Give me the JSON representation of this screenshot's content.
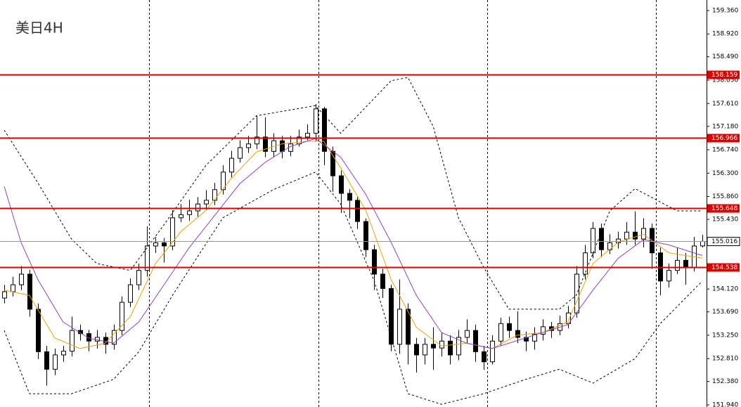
{
  "chart_data": {
    "type": "candlestick",
    "title": "美日4H",
    "ylim": [
      151.9,
      159.558
    ],
    "yticks": [
      {
        "value": 159.36,
        "label": "159.360"
      },
      {
        "value": 158.92,
        "label": "158.920"
      },
      {
        "value": 158.49,
        "label": "158.490"
      },
      {
        "value": 158.05,
        "label": "158.050"
      },
      {
        "value": 157.61,
        "label": "157.610"
      },
      {
        "value": 157.18,
        "label": "157.180"
      },
      {
        "value": 156.74,
        "label": "156.740"
      },
      {
        "value": 156.3,
        "label": "156.300"
      },
      {
        "value": 155.86,
        "label": "155.860"
      },
      {
        "value": 155.43,
        "label": "155.430"
      },
      {
        "value": 154.12,
        "label": "154.120"
      },
      {
        "value": 153.69,
        "label": "153.690"
      },
      {
        "value": 153.25,
        "label": "153.250"
      },
      {
        "value": 152.81,
        "label": "152.810"
      },
      {
        "value": 152.38,
        "label": "152.380"
      },
      {
        "value": 151.94,
        "label": "151.940"
      }
    ],
    "levels": [
      {
        "value": 158.159,
        "label": "158.159"
      },
      {
        "value": 156.966,
        "label": "156.966"
      },
      {
        "value": 155.648,
        "label": "155.648"
      },
      {
        "value": 154.538,
        "label": "154.538"
      }
    ],
    "level_color": "#e00000",
    "current_price": {
      "value": 155.016,
      "label": "155.016"
    },
    "open": [
      153.95,
      154.07,
      154.2,
      154.4,
      153.74,
      152.94,
      152.61,
      152.88,
      152.95,
      153.34,
      153.28,
      153.14,
      153.21,
      153.08,
      153.34,
      153.87,
      154.2,
      154.47,
      154.93,
      154.99,
      154.93,
      155.46,
      155.52,
      155.59,
      155.72,
      155.79,
      155.99,
      156.32,
      156.58,
      156.78,
      156.85,
      156.98,
      156.71,
      156.91,
      156.71,
      156.85,
      156.98,
      157.05,
      157.51,
      156.71,
      156.25,
      155.92,
      155.79,
      155.39,
      154.86,
      154.4,
      154.13,
      153.08,
      153.74,
      153.08,
      152.88,
      153.08,
      153.01,
      153.14,
      152.88,
      153.21,
      153.34,
      152.94,
      152.75,
      153.14,
      153.47,
      153.34,
      153.21,
      153.14,
      153.27,
      153.41,
      153.34,
      153.47,
      153.67,
      154.4,
      154.8,
      155.26,
      154.86,
      154.99,
      155.06,
      155.19,
      155.06,
      155.26,
      154.8,
      154.27,
      154.47,
      154.66,
      154.53,
      154.93
    ],
    "high": [
      154.2,
      154.35,
      154.55,
      154.48,
      153.85,
      153.05,
      153.0,
      153.05,
      153.6,
      153.45,
      153.35,
      153.35,
      153.3,
      153.45,
      153.98,
      154.32,
      154.6,
      155.3,
      155.1,
      155.08,
      155.6,
      155.72,
      155.8,
      155.85,
      155.98,
      156.12,
      156.45,
      156.72,
      156.92,
      157.0,
      157.38,
      157.35,
      157.05,
      157.0,
      157.0,
      157.12,
      157.22,
      157.6,
      157.55,
      156.8,
      156.35,
      156.0,
      155.85,
      155.45,
      154.95,
      154.5,
      154.2,
      154.3,
      153.85,
      153.2,
      153.2,
      153.4,
      153.3,
      153.25,
      153.35,
      153.55,
      153.45,
      153.05,
      153.25,
      153.58,
      153.6,
      153.7,
      153.32,
      153.4,
      153.55,
      153.5,
      153.62,
      153.8,
      154.55,
      154.95,
      155.38,
      155.35,
      155.15,
      155.2,
      155.38,
      155.58,
      155.45,
      155.35,
      154.9,
      154.6,
      154.9,
      154.8,
      155.1,
      155.14
    ],
    "low": [
      153.85,
      153.98,
      154.1,
      153.6,
      152.8,
      152.3,
      152.5,
      152.75,
      152.85,
      153.15,
      152.95,
      153.0,
      152.9,
      152.98,
      153.25,
      153.78,
      154.1,
      154.35,
      154.8,
      154.62,
      154.85,
      155.38,
      155.4,
      155.48,
      155.6,
      155.7,
      155.9,
      156.22,
      156.5,
      156.68,
      156.75,
      156.6,
      156.6,
      156.58,
      156.62,
      156.8,
      156.92,
      156.9,
      156.45,
      155.95,
      155.55,
      155.45,
      155.25,
      154.72,
      154.1,
      153.95,
      152.95,
      152.9,
      152.7,
      152.55,
      152.7,
      152.6,
      152.85,
      152.7,
      152.78,
      153.1,
      152.75,
      152.6,
      152.7,
      153.05,
      153.2,
      153.1,
      152.95,
      152.98,
      153.15,
      153.2,
      153.25,
      153.38,
      153.58,
      154.3,
      154.7,
      154.72,
      154.78,
      154.88,
      154.95,
      154.95,
      154.9,
      154.5,
      154.0,
      154.15,
      154.4,
      154.2,
      154.45,
      154.9
    ],
    "close": [
      154.07,
      154.2,
      154.4,
      153.74,
      152.94,
      152.61,
      152.88,
      152.95,
      153.34,
      153.28,
      153.14,
      153.21,
      153.08,
      153.34,
      153.87,
      154.2,
      154.47,
      154.93,
      154.99,
      154.93,
      155.46,
      155.52,
      155.59,
      155.72,
      155.79,
      155.99,
      156.32,
      156.58,
      156.78,
      156.85,
      156.98,
      156.71,
      156.91,
      156.71,
      156.85,
      156.98,
      157.05,
      157.51,
      156.71,
      156.25,
      155.92,
      155.79,
      155.39,
      154.86,
      154.4,
      154.13,
      153.08,
      153.74,
      153.08,
      152.88,
      153.08,
      153.01,
      153.14,
      152.88,
      153.21,
      153.34,
      152.94,
      152.75,
      153.14,
      153.47,
      153.34,
      153.21,
      153.14,
      153.27,
      153.41,
      153.34,
      153.47,
      153.67,
      154.4,
      154.8,
      155.26,
      154.86,
      154.99,
      155.06,
      155.19,
      155.06,
      155.26,
      154.8,
      154.27,
      154.47,
      154.66,
      154.53,
      154.93,
      155.016
    ],
    "lines": [
      {
        "color": "#f0a000",
        "dashed": false,
        "x": [
          0,
          3,
          6,
          9,
          12,
          15,
          18,
          21,
          24,
          27,
          30,
          33,
          36,
          38,
          40,
          43,
          46,
          49,
          52,
          55,
          58,
          61,
          64,
          67,
          70,
          73,
          76,
          79,
          83
        ],
        "values": [
          154.1,
          154.0,
          153.2,
          153.0,
          153.1,
          153.6,
          154.6,
          155.2,
          155.6,
          156.2,
          156.7,
          156.85,
          156.9,
          156.9,
          156.4,
          155.6,
          154.3,
          153.4,
          153.05,
          153.1,
          153.0,
          153.25,
          153.3,
          153.5,
          154.6,
          155.0,
          155.15,
          154.8,
          154.7
        ]
      },
      {
        "color": "#9040d0",
        "dashed": false,
        "x": [
          0,
          2,
          4,
          7,
          10,
          13,
          16,
          19,
          22,
          25,
          28,
          31,
          34,
          37,
          40,
          43,
          46,
          49,
          52,
          55,
          58,
          61,
          64,
          67,
          70,
          73,
          76,
          79,
          83
        ],
        "values": [
          156.05,
          155.0,
          154.3,
          153.5,
          153.2,
          153.1,
          153.5,
          154.2,
          154.9,
          155.5,
          156.1,
          156.5,
          156.8,
          156.95,
          156.6,
          155.9,
          155.0,
          154.0,
          153.3,
          153.1,
          153.0,
          153.15,
          153.3,
          153.45,
          154.1,
          154.7,
          155.05,
          154.95,
          154.75
        ]
      },
      {
        "color": "#000000",
        "dashed": true,
        "x": [
          0,
          4,
          8,
          11,
          15,
          19,
          24,
          30,
          37,
          40,
          46,
          48,
          51,
          54,
          57,
          60,
          66,
          68,
          72,
          75,
          80,
          83
        ],
        "values": [
          157.11,
          156.12,
          155.06,
          154.6,
          154.47,
          155.33,
          156.45,
          157.38,
          157.57,
          157.05,
          158.04,
          158.1,
          157.18,
          155.46,
          154.53,
          153.74,
          153.74,
          154.0,
          155.59,
          156.01,
          155.59,
          155.59
        ]
      },
      {
        "color": "#000000",
        "dashed": true,
        "x": [
          0,
          3,
          8,
          13,
          16,
          20,
          26,
          32,
          37,
          40,
          44,
          48,
          52,
          57,
          62,
          66,
          70,
          75,
          78,
          83
        ],
        "values": [
          153.34,
          152.15,
          152.15,
          152.42,
          152.94,
          154.0,
          155.46,
          155.99,
          156.32,
          155.72,
          154.27,
          152.15,
          151.95,
          152.15,
          152.42,
          152.61,
          152.35,
          152.81,
          153.47,
          154.27
        ]
      }
    ]
  }
}
